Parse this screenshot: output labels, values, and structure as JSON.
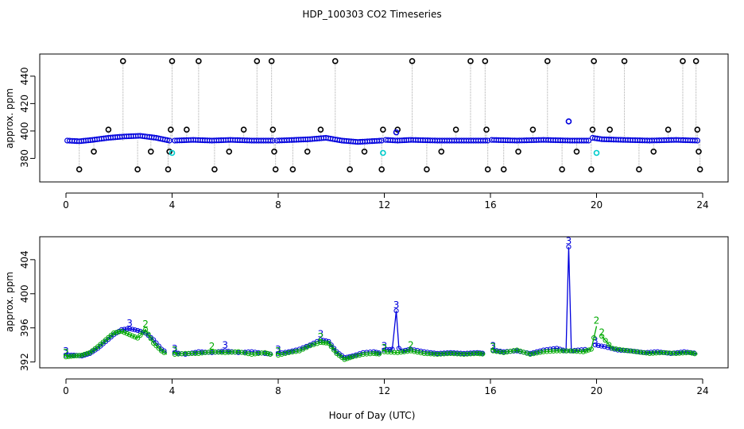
{
  "chart_data": [
    {
      "type": "scatter",
      "title": "HDP_100303  CO2 Timeseries",
      "xlabel": "",
      "ylabel": "approx. ppm",
      "xlim": [
        0,
        24
      ],
      "ylim": [
        364,
        455
      ],
      "xticks": [
        0,
        4,
        8,
        12,
        16,
        20,
        24
      ],
      "yticks": [
        380,
        400,
        420,
        440
      ],
      "series": [
        {
          "name": "main",
          "color": "#0000dd",
          "marker": "circle",
          "segments": [
            {
              "x": [
                0.05,
                0.5,
                1.0,
                1.6,
                2.2,
                2.8,
                3.4,
                3.9
              ],
              "y": [
                393,
                392.5,
                393.5,
                395,
                396,
                396.5,
                395,
                393
              ]
            },
            {
              "x": [
                4.1,
                4.8,
                5.5,
                6.2,
                7.0,
                7.8
              ],
              "y": [
                393,
                393.5,
                393,
                393.5,
                393,
                393
              ]
            },
            {
              "x": [
                7.95,
                8.6,
                9.2,
                9.8,
                10.4,
                11.0,
                11.9
              ],
              "y": [
                393,
                393.5,
                394,
                395,
                393,
                392,
                393
              ]
            },
            {
              "x": [
                12.05,
                12.5,
                13.0,
                14.0,
                15.0,
                15.9
              ],
              "y": [
                393.5,
                393,
                393.5,
                393,
                393,
                393
              ]
            },
            {
              "x": [
                16.05,
                17.0,
                18.0,
                19.0,
                19.7
              ],
              "y": [
                393.5,
                393,
                393.5,
                393,
                393
              ]
            },
            {
              "x": [
                19.85,
                20.2,
                21.0,
                22.0,
                23.0,
                23.8
              ],
              "y": [
                395,
                394,
                393.5,
                393,
                393.5,
                393
              ]
            }
          ]
        },
        {
          "name": "outliers",
          "color": "#000000",
          "marker": "circle",
          "x": [
            0.5,
            1.05,
            1.6,
            2.15,
            2.7,
            3.2,
            3.85,
            3.9,
            3.95,
            4.0,
            4.55,
            5.0,
            5.6,
            6.15,
            6.7,
            7.2,
            7.75,
            7.8,
            7.85,
            7.9,
            8.55,
            9.1,
            9.6,
            10.15,
            10.7,
            11.25,
            11.9,
            11.95,
            12.5,
            13.05,
            13.6,
            14.15,
            14.7,
            15.25,
            15.8,
            15.85,
            15.9,
            16.5,
            17.05,
            17.6,
            18.15,
            18.7,
            19.25,
            19.8,
            19.85,
            19.9,
            20.5,
            21.05,
            21.6,
            22.15,
            22.7,
            23.25,
            23.75,
            23.8,
            23.85,
            23.9
          ],
          "y": [
            372,
            385,
            401,
            451,
            372,
            385,
            372,
            385,
            401,
            451,
            401,
            451,
            372,
            385,
            401,
            451,
            451,
            401,
            385,
            372,
            372,
            385,
            401,
            451,
            372,
            385,
            372,
            401,
            401,
            451,
            372,
            385,
            401,
            451,
            451,
            401,
            372,
            372,
            385,
            401,
            451,
            372,
            385,
            372,
            401,
            451,
            401,
            451,
            372,
            385,
            401,
            451,
            451,
            401,
            385,
            372
          ]
        },
        {
          "name": "flag",
          "color": "#00cccc",
          "marker": "circle",
          "x": [
            4.0,
            11.95,
            20.0
          ],
          "y": [
            384,
            384,
            384
          ]
        },
        {
          "name": "flag-blue",
          "color": "#0000dd",
          "marker": "circle",
          "x": [
            12.45,
            18.95
          ],
          "y": [
            399,
            407
          ]
        }
      ]
    },
    {
      "type": "line",
      "title": "",
      "xlabel": "Hour of Day (UTC)",
      "ylabel": "approx. ppm",
      "xlim": [
        0,
        24
      ],
      "ylim": [
        391.5,
        406.5
      ],
      "xticks": [
        0,
        4,
        8,
        12,
        16,
        20,
        24
      ],
      "yticks": [
        392,
        396,
        400,
        404
      ],
      "series": [
        {
          "name": "trace-3",
          "color": "#0000dd",
          "label": "3",
          "segments": [
            {
              "x": [
                0.0,
                0.3,
                0.6,
                0.9,
                1.2,
                1.5,
                1.8,
                2.1,
                2.4,
                2.7,
                3.0,
                3.3,
                3.6,
                3.8
              ],
              "y": [
                392.8,
                392.8,
                392.7,
                393.0,
                393.6,
                394.4,
                395.2,
                395.8,
                395.9,
                395.7,
                395.4,
                394.6,
                393.5,
                393.1
              ]
            },
            {
              "x": [
                4.1,
                4.5,
                5.0,
                5.5,
                6.0,
                6.5,
                7.0,
                7.5,
                7.8
              ],
              "y": [
                393.1,
                392.9,
                393.2,
                393.1,
                393.3,
                393.1,
                393.2,
                393.0,
                392.9
              ]
            },
            {
              "x": [
                8.0,
                8.4,
                8.8,
                9.2,
                9.6,
                9.9,
                10.2,
                10.5,
                10.8,
                11.2,
                11.6,
                11.9
              ],
              "y": [
                393.0,
                393.2,
                393.5,
                394.0,
                394.6,
                394.4,
                393.2,
                392.5,
                392.7,
                393.1,
                393.2,
                393.0
              ]
            },
            {
              "x": [
                12.0,
                12.3,
                12.45,
                12.55,
                12.7,
                13.0,
                13.5,
                14.0,
                14.5,
                15.0,
                15.5,
                15.8
              ],
              "y": [
                393.4,
                393.5,
                398.0,
                393.6,
                393.3,
                393.5,
                393.2,
                393.0,
                393.1,
                393.0,
                393.1,
                393.0
              ]
            },
            {
              "x": [
                16.1,
                16.5,
                17.0,
                17.5,
                18.0,
                18.5,
                18.85,
                18.95,
                19.05,
                19.3,
                19.7
              ],
              "y": [
                393.4,
                393.2,
                393.3,
                393.0,
                393.4,
                393.6,
                393.3,
                405.5,
                393.3,
                393.4,
                393.5
              ]
            },
            {
              "x": [
                19.95,
                20.3,
                20.8,
                21.3,
                21.8,
                22.3,
                22.8,
                23.3,
                23.8
              ],
              "y": [
                394.0,
                393.8,
                393.4,
                393.3,
                393.1,
                393.2,
                393.0,
                393.2,
                393.0
              ]
            }
          ]
        },
        {
          "name": "trace-2",
          "color": "#00aa00",
          "label": "2",
          "segments": [
            {
              "x": [
                0.0,
                0.3,
                0.6,
                0.9,
                1.2,
                1.5,
                1.8,
                2.1,
                2.4,
                2.7,
                3.0,
                3.3,
                3.6,
                3.8
              ],
              "y": [
                392.6,
                392.7,
                392.8,
                393.1,
                393.8,
                394.6,
                395.4,
                395.6,
                395.2,
                394.8,
                395.8,
                394.2,
                393.3,
                392.9
              ]
            },
            {
              "x": [
                4.1,
                4.5,
                5.0,
                5.5,
                6.0,
                6.5,
                7.0,
                7.5,
                7.8
              ],
              "y": [
                392.9,
                393.0,
                393.0,
                393.2,
                393.1,
                393.2,
                392.9,
                393.1,
                392.8
              ]
            },
            {
              "x": [
                8.0,
                8.4,
                8.8,
                9.2,
                9.6,
                9.9,
                10.2,
                10.5,
                10.8,
                11.2,
                11.6,
                11.9
              ],
              "y": [
                392.8,
                393.1,
                393.3,
                393.9,
                394.3,
                394.2,
                393.0,
                392.3,
                392.6,
                392.9,
                393.0,
                392.9
              ]
            },
            {
              "x": [
                12.0,
                12.5,
                13.0,
                13.5,
                14.0,
                14.5,
                15.0,
                15.5,
                15.8
              ],
              "y": [
                393.2,
                393.1,
                393.3,
                393.0,
                392.9,
                393.0,
                392.9,
                393.0,
                392.9
              ]
            },
            {
              "x": [
                16.1,
                16.5,
                17.0,
                17.5,
                18.0,
                18.5,
                19.0,
                19.5,
                19.8,
                20.0
              ],
              "y": [
                393.3,
                393.1,
                393.4,
                392.9,
                393.2,
                393.3,
                393.3,
                393.2,
                393.5,
                396.2
              ]
            },
            {
              "x": [
                20.2,
                20.6,
                21.0,
                21.5,
                22.0,
                22.5,
                23.0,
                23.5,
                23.8
              ],
              "y": [
                395.0,
                393.6,
                393.4,
                393.2,
                393.0,
                393.1,
                393.0,
                393.1,
                392.9
              ]
            }
          ]
        }
      ]
    }
  ]
}
